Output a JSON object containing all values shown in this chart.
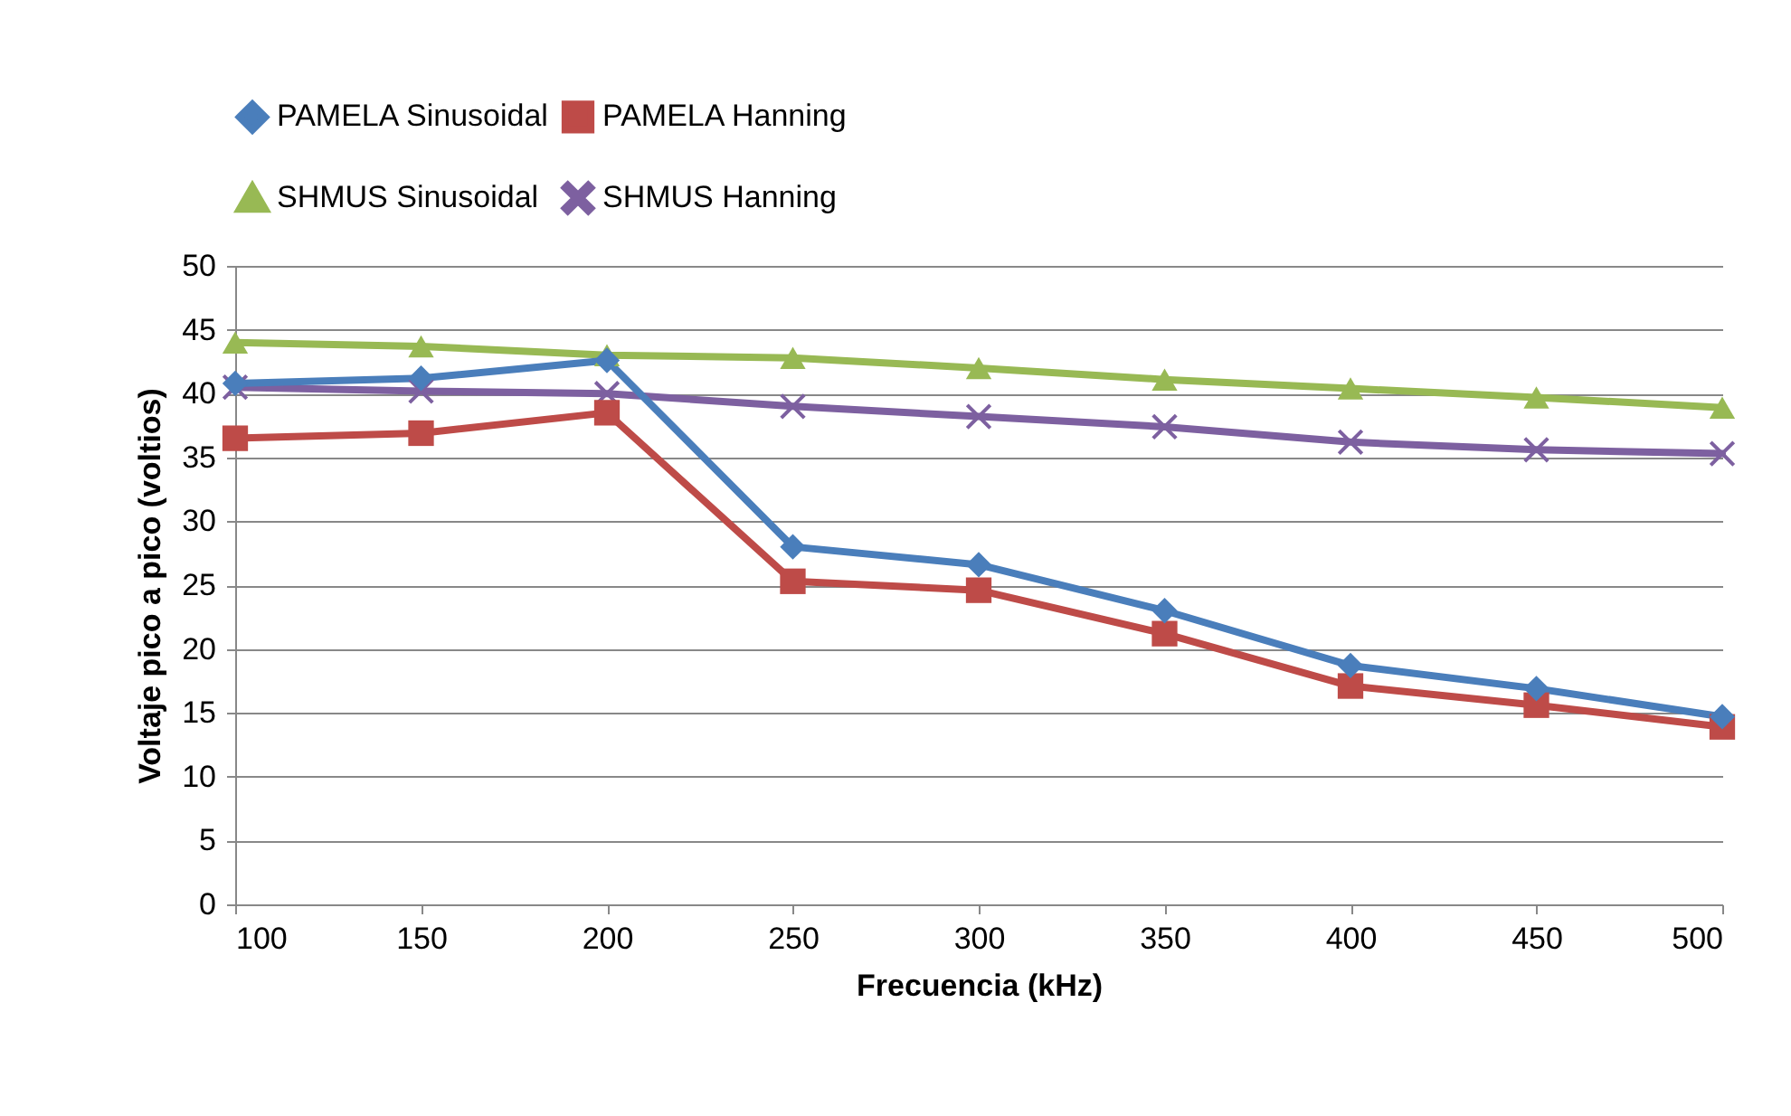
{
  "chart_data": {
    "type": "line",
    "xlabel": "Frecuencia (kHz)",
    "ylabel": "Voltaje pico a pico (voltios)",
    "x": [
      100,
      150,
      200,
      250,
      300,
      350,
      400,
      450,
      500
    ],
    "xlim": [
      100,
      500
    ],
    "xticks": [
      100,
      150,
      200,
      250,
      300,
      350,
      400,
      450,
      500
    ],
    "ylim": [
      0,
      50
    ],
    "yticks": [
      0,
      5,
      10,
      15,
      20,
      25,
      30,
      35,
      40,
      45,
      50
    ],
    "grid": "y",
    "legend": "top",
    "series": [
      {
        "name": "PAMELA Sinusoidal",
        "color": "#4a7ebb",
        "marker": "diamond",
        "values": [
          40.8,
          41.2,
          42.6,
          28.0,
          26.6,
          23.0,
          18.7,
          16.9,
          14.7
        ]
      },
      {
        "name": "PAMELA Hanning",
        "color": "#be4b48",
        "marker": "square",
        "values": [
          36.5,
          36.9,
          38.5,
          25.3,
          24.6,
          21.2,
          17.1,
          15.6,
          13.9
        ]
      },
      {
        "name": "SHMUS Sinusoidal",
        "color": "#98b954",
        "marker": "triangle",
        "values": [
          44.0,
          43.7,
          43.0,
          42.8,
          42.0,
          41.1,
          40.4,
          39.7,
          38.9
        ]
      },
      {
        "name": "SHMUS Hanning",
        "color": "#7d60a0",
        "marker": "cross",
        "values": [
          40.5,
          40.2,
          40.0,
          39.0,
          38.2,
          37.4,
          36.2,
          35.6,
          35.3
        ]
      }
    ]
  }
}
